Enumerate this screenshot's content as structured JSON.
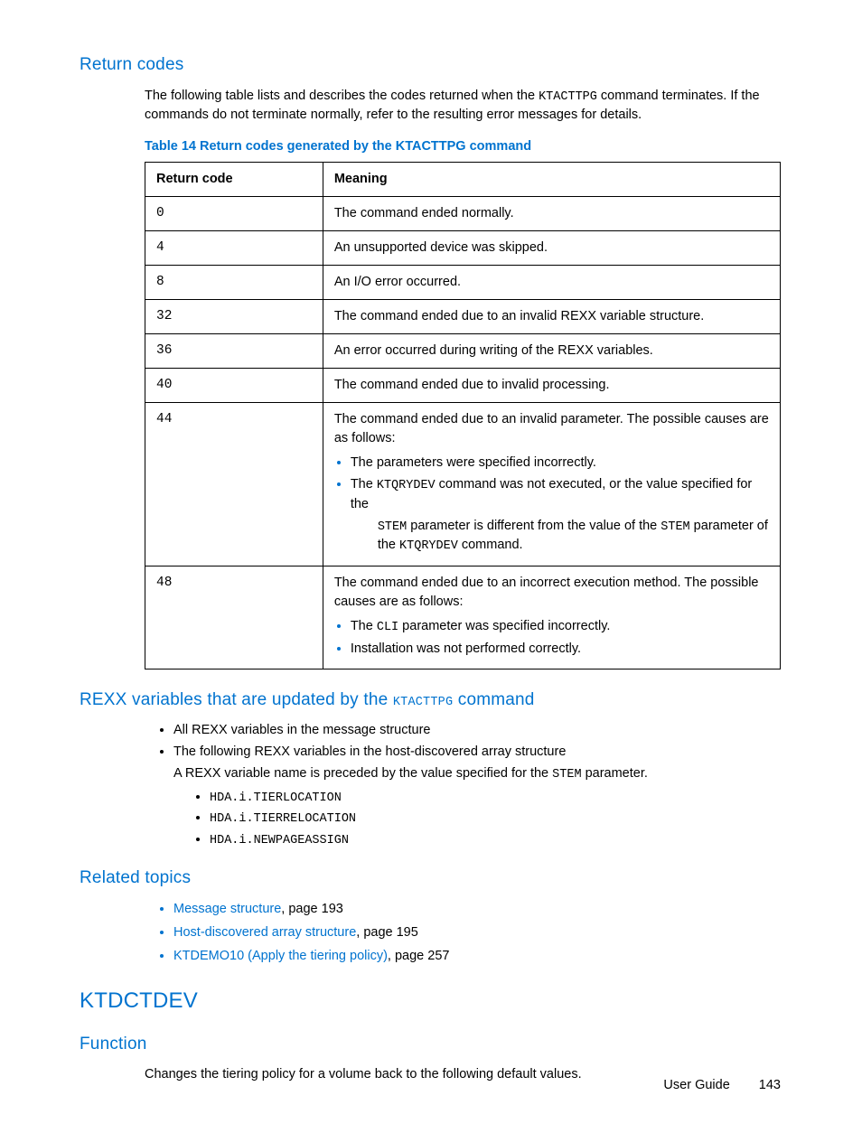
{
  "colors": {
    "accent": "#0073cf",
    "text": "#000000",
    "table_border": "#000000",
    "background": "#ffffff"
  },
  "typography": {
    "body_font": "Arial",
    "body_size_pt": 11,
    "mono_font": "Courier New",
    "h1_size_pt": 18,
    "h2_size_pt": 14
  },
  "sections": {
    "return_codes": {
      "heading": "Return codes",
      "intro_part1": "The following table lists and describes the codes returned when the ",
      "intro_cmd": "KTACTTPG",
      "intro_part2": " command terminates. If the commands do not terminate normally, refer to the resulting error messages for details.",
      "table_caption": "Table 14 Return codes generated by the KTACTTPG command",
      "table": {
        "col_widths_pct": [
          28,
          72
        ],
        "headers": [
          "Return code",
          "Meaning"
        ],
        "rows": [
          {
            "code": "0",
            "meaning_simple": "The command ended normally."
          },
          {
            "code": "4",
            "meaning_simple": "An unsupported device was skipped."
          },
          {
            "code": "8",
            "meaning_simple": "An I/O error occurred."
          },
          {
            "code": "32",
            "meaning_simple": "The command ended due to an invalid REXX variable structure."
          },
          {
            "code": "36",
            "meaning_simple": "An error occurred during writing of the REXX variables."
          },
          {
            "code": "40",
            "meaning_simple": "The command ended due to invalid processing."
          },
          {
            "code": "44",
            "meaning_lead": "The command ended due to an invalid parameter. The possible causes are as follows:",
            "bullets": [
              {
                "text": "The parameters were specified incorrectly."
              },
              {
                "pre": "The ",
                "mono1": "KTQRYDEV",
                "mid1": " command was not executed, or the value specified for the ",
                "mono2": "STEM",
                "mid2": " parameter is different from the value of the ",
                "mono3": "STEM",
                "mid3": " parameter of the ",
                "mono4": "KTQRYDEV",
                "post": " command."
              }
            ]
          },
          {
            "code": "48",
            "meaning_lead": "The command ended due to an incorrect execution method. The possible causes are as follows:",
            "bullets": [
              {
                "pre": "The ",
                "mono1": "CLI",
                "post": " parameter was specified incorrectly."
              },
              {
                "text": "Installation was not performed correctly."
              }
            ]
          }
        ]
      }
    },
    "rexx_vars": {
      "heading_pre": "REXX variables that are updated by the ",
      "heading_mono": "KTACTTPG",
      "heading_post": " command",
      "items": [
        {
          "text": "All REXX variables in the message structure"
        },
        {
          "text": "The following REXX variables in the host-discovered array structure",
          "desc_pre": "A REXX variable name is preceded by the value specified for the ",
          "desc_mono": "STEM",
          "desc_post": " parameter.",
          "sub": [
            "HDA.i.TIERLOCATION",
            "HDA.i.TIERRELOCATION",
            "HDA.i.NEWPAGEASSIGN"
          ]
        }
      ]
    },
    "related": {
      "heading": "Related topics",
      "items": [
        {
          "link": "Message structure",
          "suffix": ", page 193"
        },
        {
          "link": "Host-discovered array structure",
          "suffix": ", page 195"
        },
        {
          "link": "KTDEMO10 (Apply the tiering policy)",
          "suffix": ", page 257"
        }
      ]
    },
    "ktdctdev": {
      "heading": "KTDCTDEV",
      "sub_heading": "Function",
      "body": "Changes the tiering policy for a volume back to the following default values."
    }
  },
  "footer": {
    "label": "User Guide",
    "page": "143"
  }
}
